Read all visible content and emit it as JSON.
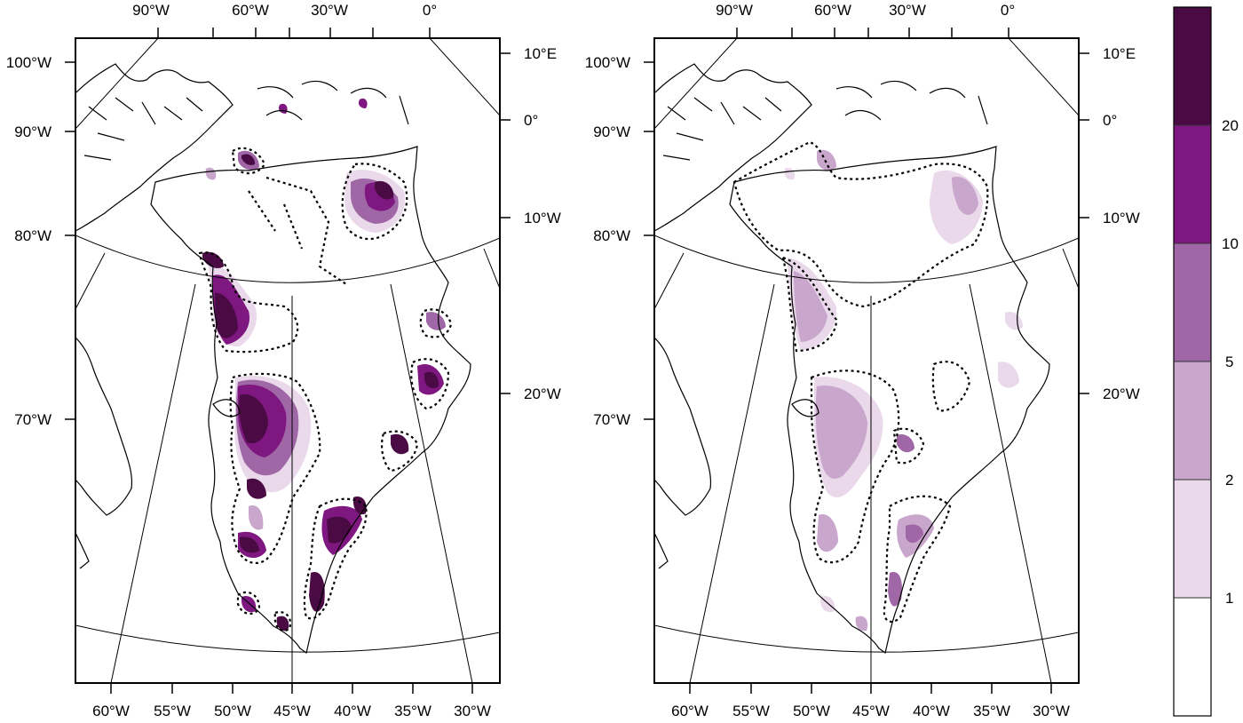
{
  "maps": [
    {
      "name": "left",
      "top_labels": [
        "90°W",
        "60°W",
        "30°W",
        "0°"
      ],
      "left_labels": [
        "100°W",
        "90°W",
        "80°W",
        "70°W"
      ],
      "right_labels": [
        "10°E",
        "0°",
        "10°W",
        "20°W"
      ],
      "bottom_labels": [
        "60°W",
        "55°W",
        "50°W",
        "45°W",
        "40°W",
        "35°W",
        "30°W"
      ]
    },
    {
      "name": "right",
      "top_labels": [
        "90°W",
        "60°W",
        "30°W",
        "0°"
      ],
      "left_labels": [
        "100°W",
        "90°W",
        "80°W",
        "70°W"
      ],
      "right_labels": [
        "10°E",
        "0°",
        "10°W",
        "20°W"
      ],
      "bottom_labels": [
        "60°W",
        "55°W",
        "50°W",
        "45°W",
        "40°W",
        "35°W",
        "30°W"
      ]
    }
  ],
  "legend": {
    "labels": [
      "20",
      "10",
      "5",
      "2",
      "1"
    ],
    "colors": [
      "#4a0a44",
      "#7e1780",
      "#a067a6",
      "#c9a6cc",
      "#ead9ea",
      "#ffffff"
    ]
  },
  "shading_colors": {
    "level_1": "#ead9ea",
    "level_2": "#c9a6cc",
    "level_5": "#a067a6",
    "level_10": "#7e1780",
    "level_20": "#4a0a44"
  }
}
